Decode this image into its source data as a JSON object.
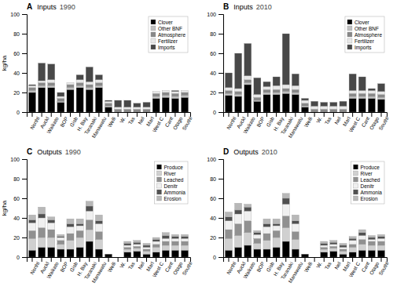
{
  "chart_data": [
    {
      "type": "bar",
      "stacked": true,
      "title": "Inputs",
      "subtitle": "1990",
      "annotations": [
        "A"
      ],
      "ylabel": "kg/ha",
      "categories": [
        "Northl",
        "Auckl",
        "Waikato",
        "BOP",
        "Gisb",
        "H. Bay",
        "Taranaki",
        "Manawatu",
        "Welli",
        "W.",
        "Tas",
        "Nel",
        "Marl",
        "West C",
        "Cant",
        "Otago",
        "Southl"
      ],
      "series": [
        {
          "name": "Clover",
          "color": "#000000",
          "values": [
            20,
            25,
            25,
            10,
            23,
            25,
            23,
            25,
            5,
            0,
            0,
            0,
            0,
            14,
            15,
            14,
            15
          ]
        },
        {
          "name": "Other BNF",
          "color": "#c0c0c0",
          "values": [
            2,
            2,
            2,
            1,
            2,
            2,
            2,
            2,
            1,
            0,
            0,
            0,
            0,
            2,
            2,
            2,
            2
          ]
        },
        {
          "name": "Atmosphere",
          "color": "#888888",
          "values": [
            3,
            3,
            3,
            3,
            3,
            3,
            3,
            3,
            3,
            3,
            3,
            3,
            3,
            3,
            3,
            3,
            3
          ]
        },
        {
          "name": "Fertilizer",
          "color": "#e8e8e8",
          "values": [
            2,
            2,
            3,
            2,
            2,
            3,
            3,
            3,
            2,
            2,
            2,
            2,
            2,
            2,
            2,
            2,
            2
          ]
        },
        {
          "name": "Imports",
          "color": "#484848",
          "values": [
            1,
            18,
            16,
            4,
            0,
            5,
            15,
            5,
            1,
            7,
            7,
            4,
            5,
            0,
            0,
            1,
            0
          ]
        }
      ],
      "ylim": [
        0,
        100
      ],
      "yticks": [
        0,
        20,
        40,
        60,
        80,
        100
      ],
      "grid": false,
      "legend": "top-right"
    },
    {
      "type": "bar",
      "stacked": true,
      "title": "Inputs",
      "subtitle": "2010",
      "annotations": [
        "B"
      ],
      "categories": [
        "Northl",
        "Auckl",
        "Waikato",
        "BOP",
        "Gisb",
        "H. Bay",
        "Taranaki",
        "Manawatu",
        "Welli",
        "W.",
        "Tas",
        "Nel",
        "Marl",
        "West C",
        "Cant",
        "Otago",
        "Southl"
      ],
      "series": [
        {
          "name": "Clover",
          "color": "#000000",
          "values": [
            17,
            16,
            28,
            11,
            18,
            18,
            19,
            18,
            5,
            0,
            0,
            0,
            0,
            14,
            14,
            14,
            13
          ]
        },
        {
          "name": "Other BNF",
          "color": "#c0c0c0",
          "values": [
            2,
            2,
            2,
            1,
            2,
            2,
            2,
            2,
            1,
            0,
            0,
            0,
            0,
            2,
            2,
            2,
            2
          ]
        },
        {
          "name": "Atmosphere",
          "color": "#888888",
          "values": [
            3,
            3,
            3,
            3,
            3,
            3,
            3,
            3,
            3,
            3,
            3,
            3,
            3,
            3,
            3,
            3,
            3
          ]
        },
        {
          "name": "Fertilizer",
          "color": "#e8e8e8",
          "values": [
            3,
            3,
            4,
            3,
            3,
            4,
            4,
            4,
            3,
            3,
            3,
            3,
            3,
            3,
            3,
            3,
            3
          ]
        },
        {
          "name": "Imports",
          "color": "#484848",
          "values": [
            15,
            36,
            33,
            17,
            5,
            9,
            52,
            12,
            2,
            5,
            4,
            4,
            5,
            17,
            14,
            2,
            8
          ]
        }
      ],
      "ylim": [
        0,
        100
      ],
      "yticks": [
        0,
        20,
        40,
        60,
        80,
        100
      ],
      "grid": false,
      "legend": "top-right"
    },
    {
      "type": "bar",
      "stacked": true,
      "title": "Outputs",
      "subtitle": "1990",
      "annotations": [
        "C"
      ],
      "ylabel": "kg/ha",
      "categories": [
        "Northl",
        "Auckl",
        "Waikato",
        "BOP",
        "Gisb",
        "H. Bay",
        "Taranaki",
        "Manawatu",
        "Welli",
        "W.",
        "Tas",
        "Nel",
        "Marl",
        "West C",
        "Cant",
        "Otago",
        "Southl"
      ],
      "series": [
        {
          "name": "Produce",
          "color": "#000000",
          "values": [
            7,
            10,
            10,
            8,
            8,
            10,
            16,
            8,
            3,
            0,
            5,
            6,
            3,
            5,
            7,
            7,
            7
          ]
        },
        {
          "name": "River",
          "color": "#d0d0d0",
          "values": [
            12,
            10,
            10,
            5,
            9,
            10,
            12,
            10,
            0,
            0,
            3,
            3,
            3,
            5,
            5,
            5,
            5
          ]
        },
        {
          "name": "Leached",
          "color": "#909090",
          "values": [
            8,
            10,
            8,
            4,
            7,
            7,
            10,
            8,
            0,
            0,
            2,
            2,
            2,
            3,
            4,
            4,
            4
          ]
        },
        {
          "name": "Denitr",
          "color": "#f0f0f0",
          "values": [
            8,
            10,
            7,
            3,
            7,
            5,
            9,
            8,
            0,
            0,
            2,
            2,
            2,
            3,
            3,
            3,
            3
          ]
        },
        {
          "name": "Ammonia",
          "color": "#505050",
          "values": [
            3,
            4,
            3,
            1,
            3,
            2,
            5,
            3,
            0,
            0,
            2,
            2,
            2,
            2,
            3,
            2,
            2
          ]
        },
        {
          "name": "Erosion",
          "color": "#b8b8b8",
          "values": [
            5,
            7,
            3,
            2,
            5,
            5,
            5,
            6,
            0,
            0,
            2,
            2,
            2,
            2,
            3,
            2,
            2
          ]
        }
      ],
      "ylim": [
        0,
        100
      ],
      "yticks": [
        0,
        20,
        40,
        60,
        80,
        100
      ],
      "grid": false,
      "legend": "top-right"
    },
    {
      "type": "bar",
      "stacked": true,
      "title": "Outputs",
      "subtitle": "2010",
      "annotations": [
        "D"
      ],
      "categories": [
        "Northl",
        "Auckl",
        "Waikato",
        "BOP",
        "Gisb",
        "H. Bay",
        "Taranaki",
        "Manawatu",
        "Welli",
        "W.",
        "Tas",
        "Nel",
        "Marl",
        "West C",
        "Cant",
        "Otago",
        "Southl"
      ],
      "series": [
        {
          "name": "Produce",
          "color": "#000000",
          "values": [
            7,
            10,
            12,
            8,
            8,
            10,
            16,
            8,
            3,
            0,
            5,
            6,
            3,
            5,
            7,
            7,
            7
          ]
        },
        {
          "name": "River",
          "color": "#d0d0d0",
          "values": [
            12,
            12,
            13,
            6,
            9,
            10,
            14,
            10,
            0,
            0,
            3,
            3,
            3,
            5,
            6,
            5,
            5
          ]
        },
        {
          "name": "Leached",
          "color": "#909090",
          "values": [
            9,
            12,
            12,
            5,
            7,
            7,
            12,
            8,
            0,
            0,
            2,
            2,
            2,
            3,
            5,
            4,
            4
          ]
        },
        {
          "name": "Denitr",
          "color": "#f0f0f0",
          "values": [
            9,
            10,
            10,
            4,
            7,
            5,
            12,
            8,
            0,
            0,
            2,
            2,
            2,
            4,
            4,
            2,
            3
          ]
        },
        {
          "name": "Ammonia",
          "color": "#505050",
          "values": [
            4,
            4,
            4,
            2,
            3,
            2,
            6,
            3,
            0,
            0,
            2,
            2,
            2,
            2,
            3,
            2,
            2
          ]
        },
        {
          "name": "Erosion",
          "color": "#b8b8b8",
          "values": [
            5,
            7,
            3,
            2,
            5,
            5,
            5,
            6,
            0,
            0,
            2,
            2,
            2,
            2,
            3,
            2,
            2
          ]
        }
      ],
      "ylim": [
        0,
        100
      ],
      "yticks": [
        0,
        20,
        40,
        60,
        80,
        100
      ],
      "grid": false,
      "legend": "top-right"
    }
  ]
}
